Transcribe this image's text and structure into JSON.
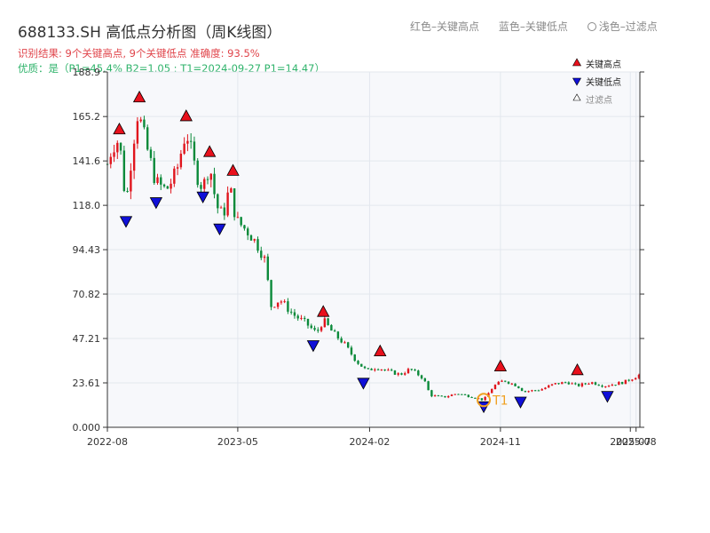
{
  "title": "688133.SH 高低点分析图（周K线图）",
  "subtitle": "识别结果: 9个关键高点, 9个关键低点  准确度: 93.5%",
  "quality": "优质：是（P1=45.4%  B2=1.05 ; T1=2024-09-27 P1=14.47）",
  "legend_top": {
    "red": "红色–关键高点",
    "blue": "蓝色–关键低点",
    "grey": "浅色–过滤点"
  },
  "colors": {
    "up": "#e0151d",
    "down": "#0b8a3a",
    "high": "#e8101c",
    "low": "#1010d8",
    "filtered": "#ffffff",
    "circle": "#f0a020",
    "grid": "#e3e7ee",
    "plot_bg": "#f7f8fb"
  },
  "chart_data": {
    "type": "candlestick",
    "title": "688133.SH 高低点分析图（周K线图）",
    "x_ticks": [
      "2022-08",
      "2023-05",
      "2024-02",
      "2024-11",
      "2025-07",
      "2025-08"
    ],
    "y_ticks": [
      "188.9",
      "165.2",
      "141.6",
      "118.0",
      "94.43",
      "70.82",
      "47.21",
      "23.61",
      "0.000"
    ],
    "y_values": [
      188.9,
      165.2,
      141.6,
      118.0,
      94.43,
      70.82,
      47.21,
      23.61,
      0.0
    ],
    "ylim": [
      0,
      188.9
    ],
    "x_range": [
      "2022-08-01",
      "2025-08-20"
    ],
    "weekly_close_anchors": [
      [
        "2022-08-01",
        140
      ],
      [
        "2022-08-12",
        150
      ],
      [
        "2022-08-26",
        153
      ],
      [
        "2022-09-09",
        118
      ],
      [
        "2022-09-23",
        150
      ],
      [
        "2022-10-04",
        168
      ],
      [
        "2022-10-21",
        150
      ],
      [
        "2022-11-11",
        130
      ],
      [
        "2022-12-02",
        126
      ],
      [
        "2022-12-23",
        135
      ],
      [
        "2023-01-13",
        158
      ],
      [
        "2023-02-03",
        135
      ],
      [
        "2023-02-17",
        127
      ],
      [
        "2023-03-03",
        140
      ],
      [
        "2023-03-17",
        118
      ],
      [
        "2023-03-31",
        112
      ],
      [
        "2023-04-14",
        128
      ],
      [
        "2023-04-28",
        110
      ],
      [
        "2023-05-26",
        103
      ],
      [
        "2023-06-16",
        95
      ],
      [
        "2023-06-30",
        87
      ],
      [
        "2023-07-07",
        64
      ],
      [
        "2023-07-28",
        68
      ],
      [
        "2023-08-25",
        60
      ],
      [
        "2023-09-22",
        55
      ],
      [
        "2023-10-13",
        50
      ],
      [
        "2023-10-27",
        57
      ],
      [
        "2023-11-17",
        50
      ],
      [
        "2023-12-08",
        45
      ],
      [
        "2024-01-05",
        35
      ],
      [
        "2024-01-26",
        30
      ],
      [
        "2024-02-16",
        32
      ],
      [
        "2024-03-08",
        30
      ],
      [
        "2024-04-05",
        28
      ],
      [
        "2024-04-26",
        31
      ],
      [
        "2024-05-24",
        26
      ],
      [
        "2024-06-07",
        17
      ],
      [
        "2024-07-05",
        16
      ],
      [
        "2024-08-02",
        18
      ],
      [
        "2024-09-06",
        16
      ],
      [
        "2024-09-27",
        14.5
      ],
      [
        "2024-10-18",
        22
      ],
      [
        "2024-11-08",
        25
      ],
      [
        "2024-12-06",
        22
      ],
      [
        "2024-12-20",
        19
      ],
      [
        "2025-01-24",
        20
      ],
      [
        "2025-02-21",
        23
      ],
      [
        "2025-03-21",
        24
      ],
      [
        "2025-04-11",
        22
      ],
      [
        "2025-05-09",
        24
      ],
      [
        "2025-06-06",
        22
      ],
      [
        "2025-06-27",
        23
      ],
      [
        "2025-07-18",
        24
      ],
      [
        "2025-08-20",
        28
      ]
    ],
    "key_highs": [
      {
        "date": "2022-08-26",
        "price": 155
      },
      {
        "date": "2022-10-07",
        "price": 172
      },
      {
        "date": "2023-01-13",
        "price": 162
      },
      {
        "date": "2023-03-03",
        "price": 143
      },
      {
        "date": "2023-04-21",
        "price": 133
      },
      {
        "date": "2023-10-27",
        "price": 58
      },
      {
        "date": "2024-02-23",
        "price": 37
      },
      {
        "date": "2024-11-01",
        "price": 29
      },
      {
        "date": "2025-04-11",
        "price": 27
      }
    ],
    "key_lows": [
      {
        "date": "2022-09-09",
        "price": 113
      },
      {
        "date": "2022-11-11",
        "price": 123
      },
      {
        "date": "2023-02-17",
        "price": 126
      },
      {
        "date": "2023-03-24",
        "price": 109
      },
      {
        "date": "2023-10-06",
        "price": 47
      },
      {
        "date": "2024-01-19",
        "price": 27
      },
      {
        "date": "2024-09-27",
        "price": 14.5
      },
      {
        "date": "2024-12-13",
        "price": 17
      },
      {
        "date": "2025-06-13",
        "price": 20
      }
    ],
    "circled_point": {
      "date": "2024-09-27",
      "price": 14.5,
      "label": "T1"
    },
    "legend": [
      {
        "symbol": "high",
        "label": "关键高点"
      },
      {
        "symbol": "low",
        "label": "关键低点"
      },
      {
        "symbol": "filtered",
        "label": "过滤点"
      }
    ],
    "legend_position": "top-right",
    "grid": true
  }
}
